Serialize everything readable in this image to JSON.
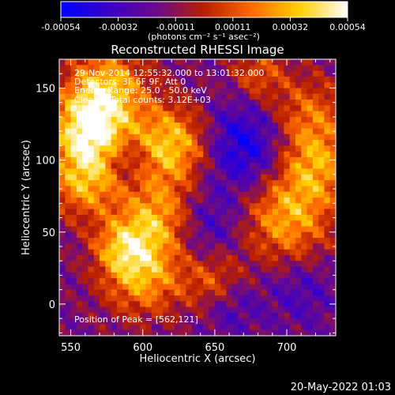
{
  "chart_data": {
    "type": "heatmap",
    "title": "Reconstructed RHESSI Image",
    "xlabel": "Heliocentric X (arcsec)",
    "ylabel": "Heliocentric Y (arcsec)",
    "xlim": [
      542,
      734
    ],
    "ylim": [
      -22,
      170
    ],
    "x_ticks": [
      550,
      600,
      650,
      700
    ],
    "x_tick_labels": [
      "550",
      "600",
      "650",
      "700"
    ],
    "y_ticks": [
      0,
      50,
      100,
      150
    ],
    "y_tick_labels": [
      "0",
      "50",
      "100",
      "150"
    ],
    "colorbar": {
      "tick_labels": [
        "-0.00054",
        "-0.00032",
        "-0.00011",
        "0.00011",
        "0.00032",
        "0.00054"
      ],
      "range": [
        -0.00054,
        0.00054
      ],
      "units_label": "(photons cm⁻² s⁻¹ asec⁻²)",
      "colormap": [
        "#0000ff",
        "#3a00c8",
        "#6a0a8a",
        "#b81e00",
        "#ff6a00",
        "#ffd000",
        "#ffffff"
      ]
    },
    "grid": false,
    "peak": [
      562,
      121
    ]
  },
  "annotations": {
    "line1": "29-Nov-2014 12:55:32.000 to 13:01:32.000",
    "line2": "Detectors: 3F 6F 9F, Att 0",
    "line3": "Energy Range: 25.0 - 50.0 keV",
    "line4": "Clean    Total counts: 3.12E+03",
    "peak_text": "Position of Peak = [562,121]"
  },
  "footer": {
    "date": "20-May-2022 01:03"
  }
}
